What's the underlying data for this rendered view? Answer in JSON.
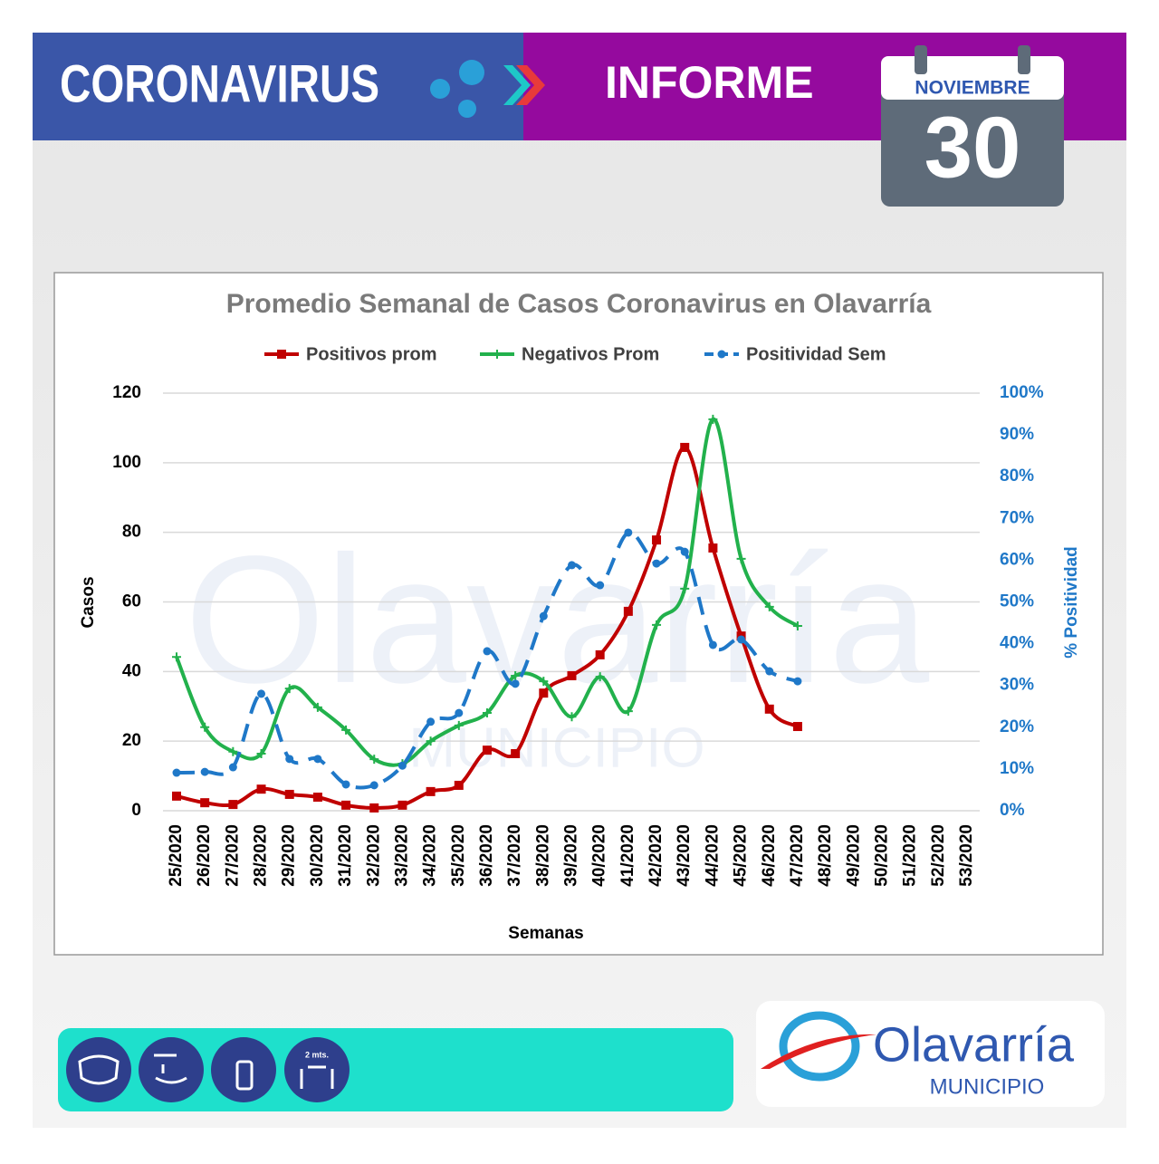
{
  "header": {
    "title": "CORONAVIRUS",
    "subtitle": "INFORME"
  },
  "calendar": {
    "month": "NOVIEMBRE",
    "day": "30"
  },
  "watermark": {
    "name": "Olavarría",
    "subtitle": "MUNICIPIO"
  },
  "chart_data": {
    "type": "line",
    "title": "Promedio Semanal de Casos Coronavirus en Olavarría",
    "xlabel": "Semanas",
    "ylabel": "Casos",
    "y2label": "% Positividad",
    "legend": "top",
    "grid": true,
    "smooth": true,
    "categories": [
      "25/2020",
      "26/2020",
      "27/2020",
      "28/2020",
      "29/2020",
      "30/2020",
      "31/2020",
      "32/2020",
      "33/2020",
      "34/2020",
      "35/2020",
      "36/2020",
      "37/2020",
      "38/2020",
      "39/2020",
      "40/2020",
      "41/2020",
      "42/2020",
      "43/2020",
      "44/2020",
      "45/2020",
      "46/2020",
      "47/2020",
      "48/2020",
      "49/2020",
      "50/2020",
      "51/2020",
      "52/2020",
      "53/2020"
    ],
    "ylim": [
      0,
      120
    ],
    "yticks": [
      0,
      20,
      40,
      60,
      80,
      100,
      120
    ],
    "y2lim": [
      0,
      100
    ],
    "y2ticks": [
      {
        "value": 0,
        "label": "0%"
      },
      {
        "value": 10,
        "label": "10%"
      },
      {
        "value": 20,
        "label": "20%"
      },
      {
        "value": 30,
        "label": "30%"
      },
      {
        "value": 40,
        "label": "40%"
      },
      {
        "value": 50,
        "label": "50%"
      },
      {
        "value": 60,
        "label": "60%"
      },
      {
        "value": 70,
        "label": "70%"
      },
      {
        "value": 80,
        "label": "80%"
      },
      {
        "value": 90,
        "label": "90%"
      },
      {
        "value": 100,
        "label": "100%"
      }
    ],
    "series": [
      {
        "name": "Positivos prom",
        "color": "#c00000",
        "marker": "square",
        "dashed": false,
        "values": [
          4.2,
          2.3,
          1.8,
          6.2,
          4.7,
          3.9,
          1.6,
          0.8,
          1.6,
          5.5,
          7.3,
          17.4,
          16.4,
          33.8,
          38.8,
          44.8,
          57.3,
          77.8,
          104.4,
          75.5,
          50.2,
          29.2,
          24.2,
          null,
          null,
          null,
          null,
          null,
          null
        ]
      },
      {
        "name": "Negativos Prom",
        "color": "#22b14c",
        "marker": "plus",
        "dashed": false,
        "values": [
          44.2,
          24,
          17,
          16.4,
          35.1,
          29.7,
          23.2,
          14.8,
          13.5,
          20,
          24.5,
          28.1,
          38.8,
          37.2,
          27,
          38.5,
          28.6,
          53.4,
          63.8,
          112.5,
          72.4,
          58.6,
          53.1,
          null,
          null,
          null,
          null,
          null,
          null
        ]
      },
      {
        "name": "Positividad Sem",
        "color": "#1f78c8",
        "marker": "circle",
        "dashed": true,
        "axis": "y2",
        "values": [
          9.1,
          9.3,
          10.4,
          28,
          12.4,
          12.4,
          6.3,
          6.1,
          10.8,
          21.3,
          23.4,
          38.2,
          30.4,
          46.6,
          58.8,
          54,
          66.6,
          59.2,
          62,
          39.7,
          41,
          33.4,
          31,
          null,
          null,
          null,
          null,
          null,
          null
        ]
      }
    ]
  },
  "icons": {
    "distance_label": "2 mts."
  },
  "logo": {
    "name": "Olavarría",
    "subtitle": "MUNICIPIO"
  }
}
